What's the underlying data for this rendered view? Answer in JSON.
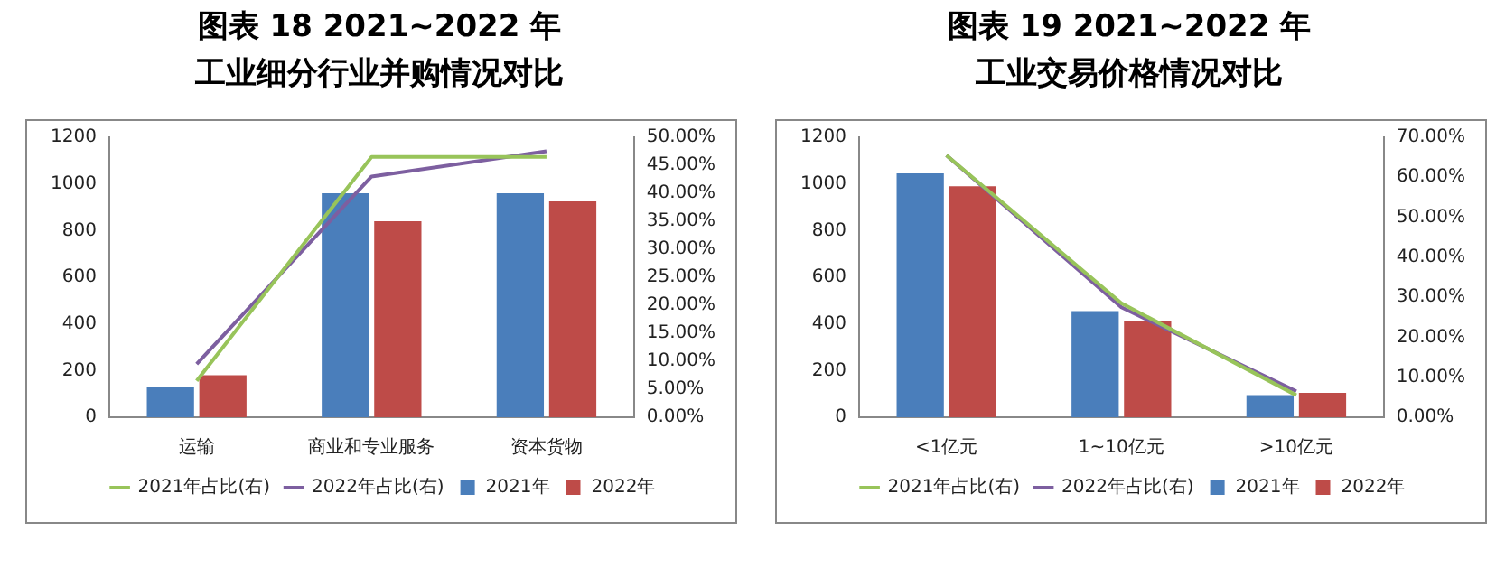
{
  "chart_data": [
    {
      "type": "bar",
      "title": "图表 18  2021~2022 年",
      "subtitle": "工业细分行业并购情况对比",
      "categories": [
        "运输",
        "商业和专业服务",
        "资本货物"
      ],
      "series": [
        {
          "name": "2021年",
          "color": "#4a7ebb",
          "values": [
            130,
            960,
            960
          ]
        },
        {
          "name": "2022年",
          "color": "#be4b48",
          "values": [
            180,
            840,
            925
          ]
        },
        {
          "name": "2021年占比(右)",
          "color": "#98c45a",
          "type": "line",
          "axis": "y2",
          "values": [
            6.5,
            46.5,
            46.5
          ]
        },
        {
          "name": "2022年占比(右)",
          "color": "#7d5fa0",
          "type": "line",
          "axis": "y2",
          "values": [
            9.5,
            43,
            47.5
          ]
        }
      ],
      "ylim": [
        0,
        1200
      ],
      "yticks": [
        0,
        200,
        400,
        600,
        800,
        1000,
        1200
      ],
      "y2lim": [
        0,
        50
      ],
      "y2ticks": [
        {
          "value": 0,
          "label": "0.00%"
        },
        {
          "value": 5,
          "label": "5.00%"
        },
        {
          "value": 10,
          "label": "10.00%"
        },
        {
          "value": 15,
          "label": "15.00%"
        },
        {
          "value": 20,
          "label": "20.00%"
        },
        {
          "value": 25,
          "label": "25.00%"
        },
        {
          "value": 30,
          "label": "30.00%"
        },
        {
          "value": 35,
          "label": "35.00%"
        },
        {
          "value": 40,
          "label": "40.00%"
        },
        {
          "value": 45,
          "label": "45.00%"
        },
        {
          "value": 50,
          "label": "50.00%"
        }
      ],
      "grid": false,
      "legend": "bottom",
      "marker": "none"
    },
    {
      "type": "bar",
      "title": "图表 19  2021~2022 年",
      "subtitle": "工业交易价格情况对比",
      "categories": [
        "<1亿元",
        "1~10亿元",
        ">10亿元"
      ],
      "series": [
        {
          "name": "2021年",
          "color": "#4a7ebb",
          "values": [
            1045,
            455,
            95
          ]
        },
        {
          "name": "2022年",
          "color": "#be4b48",
          "values": [
            990,
            410,
            105
          ]
        },
        {
          "name": "2021年占比(右)",
          "color": "#98c45a",
          "type": "line",
          "axis": "y2",
          "values": [
            65.5,
            28.5,
            5.5
          ]
        },
        {
          "name": "2022年占比(右)",
          "color": "#7d5fa0",
          "type": "line",
          "axis": "y2",
          "values": [
            65.5,
            27.5,
            6.5
          ]
        }
      ],
      "ylim": [
        0,
        1200
      ],
      "yticks": [
        0,
        200,
        400,
        600,
        800,
        1000,
        1200
      ],
      "y2lim": [
        0,
        70
      ],
      "y2ticks": [
        {
          "value": 0,
          "label": "0.00%"
        },
        {
          "value": 10,
          "label": "10.00%"
        },
        {
          "value": 20,
          "label": "20.00%"
        },
        {
          "value": 30,
          "label": "30.00%"
        },
        {
          "value": 40,
          "label": "40.00%"
        },
        {
          "value": 50,
          "label": "50.00%"
        },
        {
          "value": 60,
          "label": "60.00%"
        },
        {
          "value": 70,
          "label": "70.00%"
        }
      ],
      "grid": false,
      "legend": "bottom",
      "marker": "none"
    }
  ]
}
